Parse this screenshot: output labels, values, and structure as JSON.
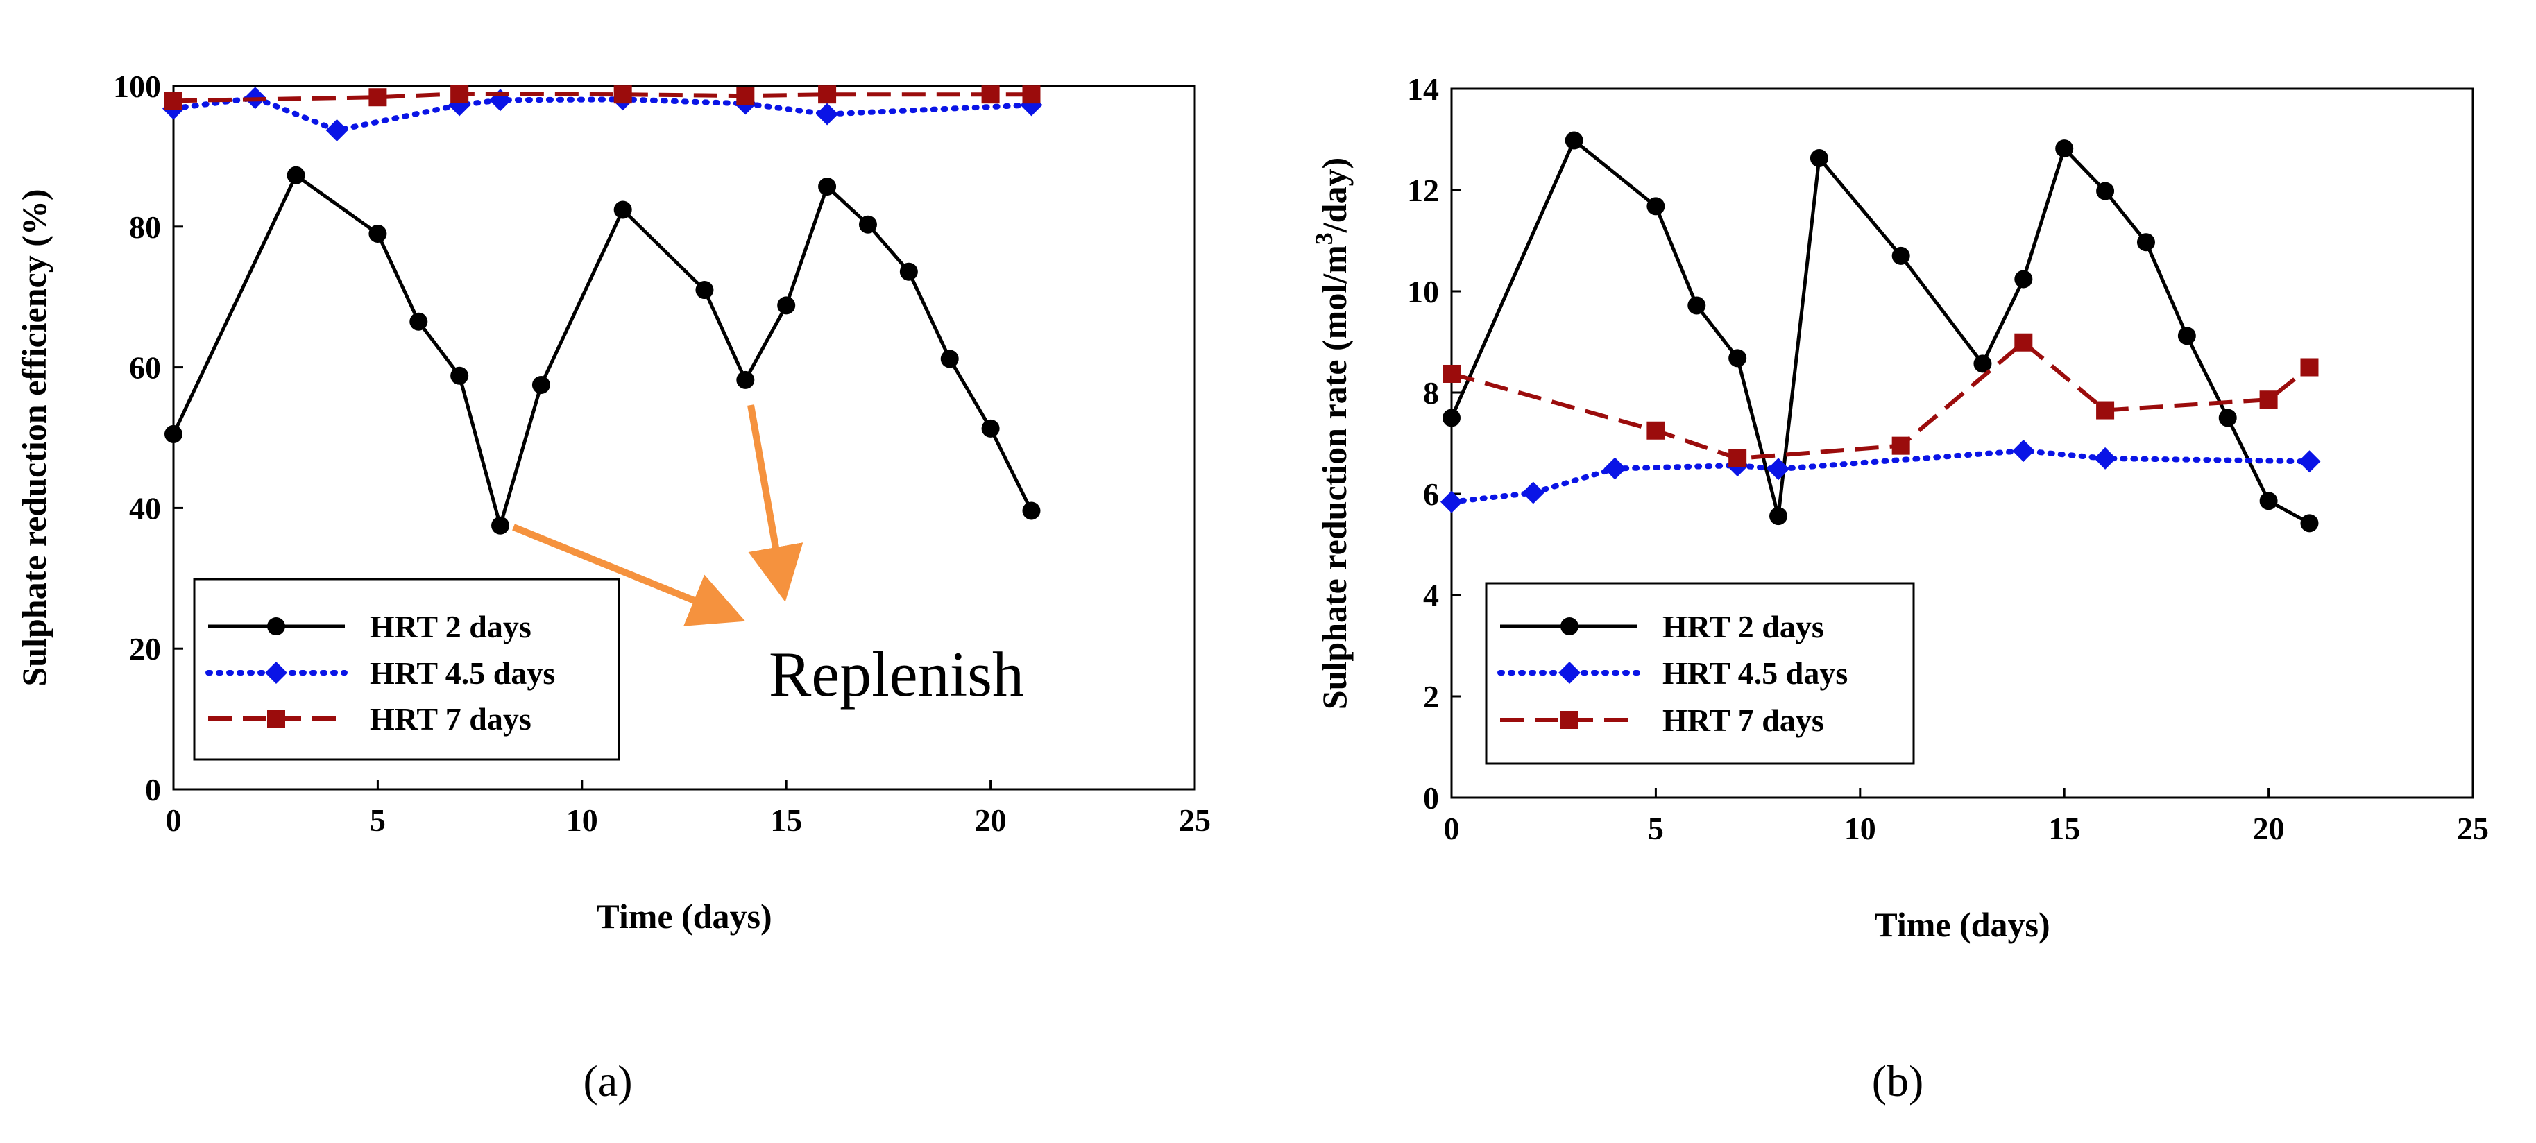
{
  "colors": {
    "hrt2": "#000000",
    "hrt45": "#0a14e6",
    "hrt7": "#9b0c0c",
    "arrow": "#f5923e"
  },
  "chart_data": [
    {
      "type": "line",
      "panel_label": "(a)",
      "xlabel": "Time (days)",
      "ylabel": "Sulphate reduction efficiency (%)",
      "xlim": [
        0,
        25
      ],
      "ylim": [
        0,
        100
      ],
      "xticks": [
        0,
        5,
        10,
        15,
        20,
        25
      ],
      "yticks": [
        0,
        20,
        40,
        60,
        80,
        100
      ],
      "legend": "bottom-left",
      "annotation": "Replenish",
      "series": [
        {
          "name": "HRT 2 days",
          "marker": "circle",
          "x": [
            0,
            3,
            5,
            6,
            7,
            8,
            9,
            11,
            13,
            14,
            15,
            16,
            17,
            18,
            19,
            20,
            21
          ],
          "y": [
            50.5,
            87.3,
            79,
            66.5,
            58.8,
            37.5,
            57.5,
            82.4,
            71,
            58.2,
            68.8,
            85.7,
            80.3,
            73.6,
            61.2,
            51.3,
            39.6
          ]
        },
        {
          "name": "HRT 4.5 days",
          "marker": "diamond",
          "x": [
            0,
            2,
            4,
            7,
            8,
            11,
            14,
            16,
            21
          ],
          "y": [
            96.8,
            98.3,
            93.7,
            97.3,
            98,
            98.1,
            97.5,
            96,
            97.3
          ]
        },
        {
          "name": "HRT 7 days",
          "marker": "square",
          "x": [
            0,
            5,
            7,
            11,
            14,
            16,
            20,
            21
          ],
          "y": [
            97.9,
            98.4,
            98.9,
            98.8,
            98.6,
            98.8,
            98.8,
            98.8
          ]
        }
      ]
    },
    {
      "type": "line",
      "panel_label": "(b)",
      "xlabel": "Time (days)",
      "ylabel": "Sulphate reduction rate (mol/m3/day)",
      "ylabel_parts": [
        "Sulphate reduction rate (mol/m",
        "3",
        "/day)"
      ],
      "xlim": [
        0,
        25
      ],
      "ylim": [
        0,
        14
      ],
      "xticks": [
        0,
        5,
        10,
        15,
        20,
        25
      ],
      "yticks": [
        0,
        2,
        4,
        6,
        8,
        10,
        12,
        14
      ],
      "legend": "bottom-left",
      "series": [
        {
          "name": "HRT 2 days",
          "marker": "circle",
          "x": [
            0,
            3,
            5,
            6,
            7,
            8,
            9,
            11,
            13,
            14,
            15,
            16,
            17,
            18,
            19,
            20,
            21
          ],
          "y": [
            7.5,
            12.98,
            11.68,
            9.72,
            8.68,
            5.56,
            12.63,
            10.7,
            8.57,
            10.24,
            12.82,
            11.98,
            10.97,
            9.12,
            7.5,
            5.86,
            5.42
          ]
        },
        {
          "name": "HRT 4.5 days",
          "marker": "diamond",
          "x": [
            0,
            2,
            4,
            7,
            8,
            14,
            16,
            21
          ],
          "y": [
            5.84,
            6.02,
            6.5,
            6.56,
            6.49,
            6.85,
            6.7,
            6.64
          ]
        },
        {
          "name": "HRT 7 days",
          "marker": "square",
          "x": [
            0,
            5,
            7,
            11,
            14,
            16,
            20,
            21
          ],
          "y": [
            8.37,
            7.25,
            6.7,
            6.95,
            8.99,
            7.65,
            7.86,
            8.5
          ]
        }
      ]
    }
  ]
}
